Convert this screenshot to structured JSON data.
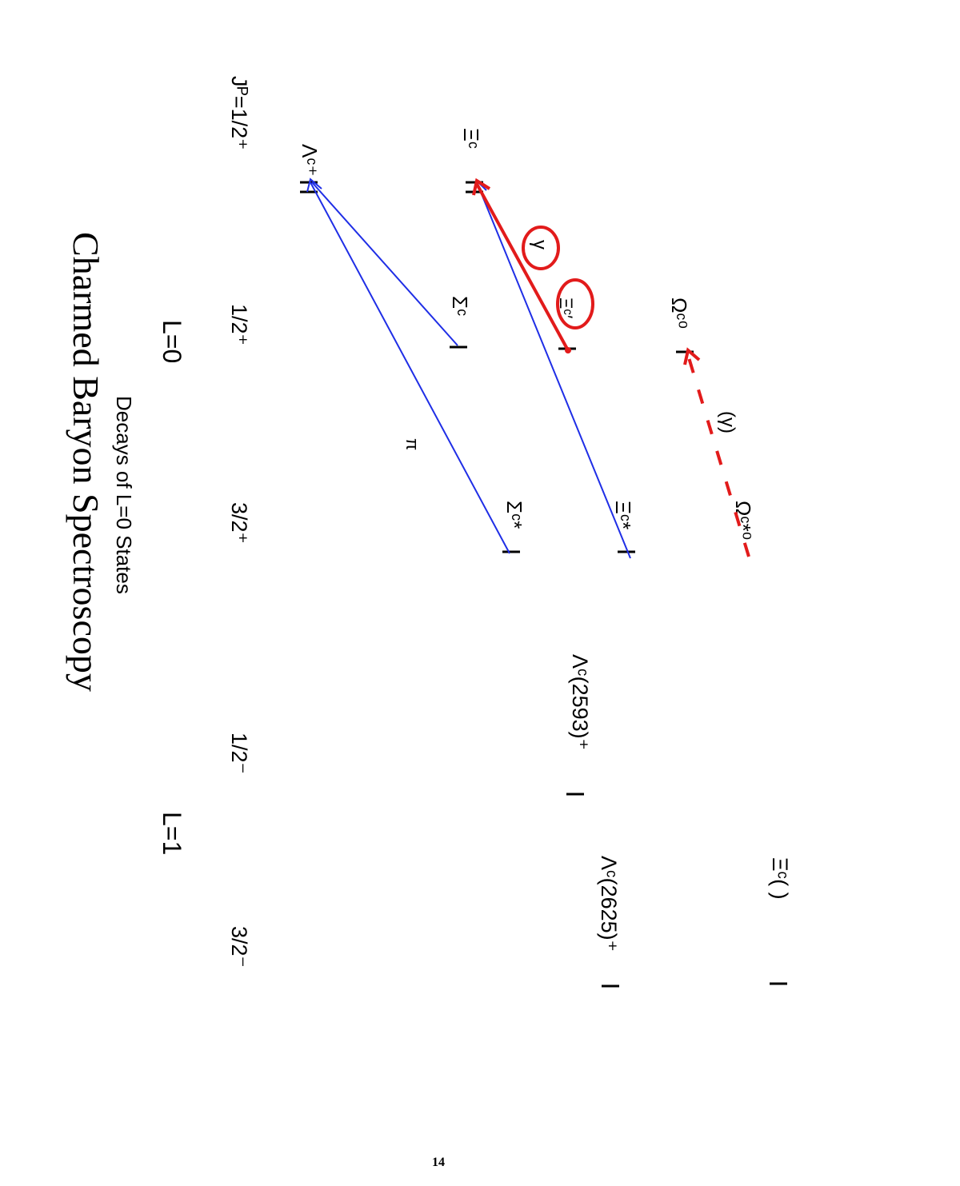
{
  "title": "Charmed Baryon Spectroscopy",
  "subtitle": "Decays of L=0 States",
  "page_number": "14",
  "groups": {
    "l0": "L=0",
    "l1": "L=1"
  },
  "jp": {
    "half_plus": "Jᴾ=1/2⁺",
    "half_plus_2": "1/2⁺",
    "three_half_plus": "3/2⁺",
    "half_minus": "1/2⁻",
    "three_half_minus": "3/2⁻"
  },
  "states": {
    "lambda_c": "Λᶜ⁺",
    "xi_c": "Ξᶜ",
    "sigma_c": "Σᶜ",
    "xi_c_prime": "Ξᶜ′",
    "omega_c": "Ωᶜ⁰",
    "sigma_c_star": "Σᶜ*",
    "xi_c_star": "Ξᶜ*",
    "omega_c_star": "Ωᶜ*⁰",
    "lambda_c_2593": "Λᶜ(2593)⁺",
    "lambda_c_2625": "Λᶜ(2625)⁺",
    "xi_c_unknown": "Ξᶜ(     )"
  },
  "annotations": {
    "pi": "π",
    "gamma": "γ",
    "gamma_paren": "(γ)"
  },
  "colors": {
    "pion": "#1f2ee6",
    "photon": "#e21b1b"
  }
}
